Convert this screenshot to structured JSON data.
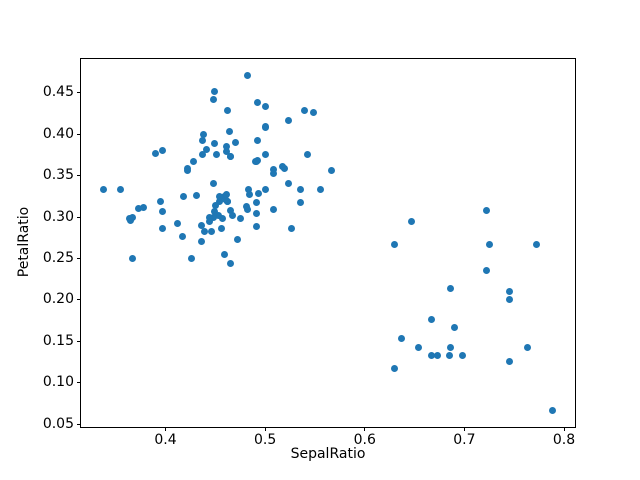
{
  "chart_data": {
    "type": "scatter",
    "title": "",
    "xlabel": "SepalRatio",
    "ylabel": "PetalRatio",
    "xlim": [
      0.3152,
      0.811
    ],
    "ylim": [
      0.0465,
      0.4908
    ],
    "x_ticks": [
      0.4,
      0.5,
      0.6,
      0.7,
      0.8
    ],
    "x_tick_labels": [
      "0.4",
      "0.5",
      "0.6",
      "0.7",
      "0.8"
    ],
    "y_ticks": [
      0.05,
      0.1,
      0.15,
      0.2,
      0.25,
      0.3,
      0.35,
      0.4,
      0.45
    ],
    "y_tick_labels": [
      "0.05",
      "0.10",
      "0.15",
      "0.20",
      "0.25",
      "0.30",
      "0.35",
      "0.40",
      "0.45"
    ],
    "grid": false,
    "legend": null,
    "marker_color": "#1f77b4",
    "marker_diameter_px": 7,
    "background": "#ffffff",
    "spine_color": "#000000",
    "points": [
      [
        0.6863,
        0.1429
      ],
      [
        0.7222,
        0.2353
      ],
      [
        0.6852,
        0.1333
      ],
      [
        0.6897,
        0.1667
      ],
      [
        0.7719,
        0.2667
      ],
      [
        0.7222,
        0.3077
      ],
      [
        0.6863,
        0.2143
      ],
      [
        0.6667,
        0.1765
      ],
      [
        0.7451,
        0.2
      ],
      [
        0.6296,
        0.1176
      ],
      [
        0.7255,
        0.2667
      ],
      [
        0.6471,
        0.2941
      ],
      [
        0.6731,
        0.1333
      ],
      [
        0.6538,
        0.1429
      ],
      [
        0.6296,
        0.2667
      ],
      [
        0.7885,
        0.0667
      ],
      [
        0.7636,
        0.1429
      ],
      [
        0.6364,
        0.1538
      ],
      [
        0.6667,
        0.1333
      ],
      [
        0.7451,
        0.2105
      ],
      [
        0.7451,
        0.125
      ],
      [
        0.6981,
        0.1333
      ],
      [
        0.4571,
        0.2979
      ],
      [
        0.5,
        0.3333
      ],
      [
        0.4493,
        0.3061
      ],
      [
        0.4182,
        0.325
      ],
      [
        0.4308,
        0.3261
      ],
      [
        0.4912,
        0.2889
      ],
      [
        0.5238,
        0.3404
      ],
      [
        0.4394,
        0.2826
      ],
      [
        0.5192,
        0.359
      ],
      [
        0.5085,
        0.3571
      ],
      [
        0.3667,
        0.25
      ],
      [
        0.4754,
        0.2979
      ],
      [
        0.5179,
        0.3611
      ],
      [
        0.4627,
        0.3182
      ],
      [
        0.5357,
        0.3333
      ],
      [
        0.4655,
        0.2439
      ],
      [
        0.3548,
        0.3333
      ],
      [
        0.4464,
        0.2821
      ],
      [
        0.5424,
        0.375
      ],
      [
        0.459,
        0.325
      ],
      [
        0.3968,
        0.3061
      ],
      [
        0.459,
        0.2553
      ],
      [
        0.4531,
        0.3023
      ],
      [
        0.4545,
        0.3182
      ],
      [
        0.4118,
        0.2917
      ],
      [
        0.4478,
        0.34
      ],
      [
        0.4833,
        0.3333
      ],
      [
        0.4561,
        0.2857
      ],
      [
        0.4364,
        0.2895
      ],
      [
        0.4364,
        0.2703
      ],
      [
        0.4655,
        0.3077
      ],
      [
        0.45,
        0.3137
      ],
      [
        0.5556,
        0.3333
      ],
      [
        0.5667,
        0.3556
      ],
      [
        0.4627,
        0.3191
      ],
      [
        0.3651,
        0.2955
      ],
      [
        0.5357,
        0.3171
      ],
      [
        0.4545,
        0.325
      ],
      [
        0.4727,
        0.2727
      ],
      [
        0.4918,
        0.3043
      ],
      [
        0.4483,
        0.3
      ],
      [
        0.4821,
        0.3095
      ],
      [
        0.5263,
        0.2857
      ],
      [
        0.5088,
        0.3095
      ],
      [
        0.4677,
        0.3023
      ],
      [
        0.4902,
        0.3667
      ],
      [
        0.4912,
        0.3171
      ],
      [
        0.5238,
        0.4167
      ],
      [
        0.4655,
        0.3725
      ],
      [
        0.4225,
        0.3559
      ],
      [
        0.4603,
        0.3214
      ],
      [
        0.4615,
        0.3793
      ],
      [
        0.3947,
        0.3182
      ],
      [
        0.3973,
        0.2857
      ],
      [
        0.3731,
        0.3103
      ],
      [
        0.5,
        0.4098
      ],
      [
        0.4923,
        0.3922
      ],
      [
        0.4219,
        0.3585
      ],
      [
        0.4412,
        0.3818
      ],
      [
        0.4386,
        0.4
      ],
      [
        0.4828,
        0.4706
      ],
      [
        0.5,
        0.434
      ],
      [
        0.4615,
        0.3273
      ],
      [
        0.4935,
        0.3284
      ],
      [
        0.3377,
        0.3333
      ],
      [
        0.3667,
        0.3
      ],
      [
        0.4638,
        0.4035
      ],
      [
        0.5,
        0.4082
      ],
      [
        0.3636,
        0.2985
      ],
      [
        0.4286,
        0.3673
      ],
      [
        0.4925,
        0.3684
      ],
      [
        0.4444,
        0.3
      ],
      [
        0.4516,
        0.375
      ],
      [
        0.4918,
        0.3673
      ],
      [
        0.4375,
        0.375
      ],
      [
        0.4167,
        0.2759
      ],
      [
        0.3784,
        0.3115
      ],
      [
        0.481,
        0.3125
      ],
      [
        0.4375,
        0.3929
      ],
      [
        0.4444,
        0.2941
      ],
      [
        0.4262,
        0.25
      ],
      [
        0.3896,
        0.377
      ],
      [
        0.5397,
        0.4286
      ],
      [
        0.4844,
        0.3273
      ],
      [
        0.5,
        0.375
      ],
      [
        0.4493,
        0.3889
      ],
      [
        0.4627,
        0.4286
      ],
      [
        0.4493,
        0.451
      ],
      [
        0.4655,
        0.3725
      ],
      [
        0.4706,
        0.3898
      ],
      [
        0.4925,
        0.4386
      ],
      [
        0.4478,
        0.4423
      ],
      [
        0.3968,
        0.38
      ],
      [
        0.4615,
        0.3846
      ],
      [
        0.5484,
        0.4259
      ],
      [
        0.5085,
        0.3529
      ]
    ]
  }
}
